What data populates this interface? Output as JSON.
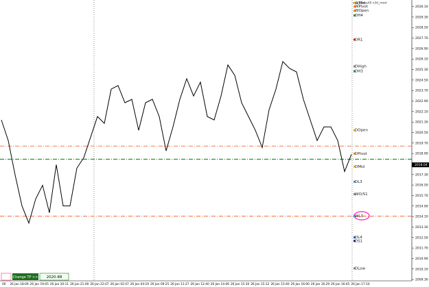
{
  "chart_data": {
    "type": "line",
    "title": "ma_CloseAll v3d_mod",
    "x_labels": [
      "00",
      "26 Jan 18:09",
      "26 Jan 19:05",
      "26 Jan 20:11",
      "26 Jan 21:00",
      "26 Jan 22:07",
      "26 Jan 02:47",
      "26 Jan 04:19",
      "26 Jan 09:25",
      "26 Jan 11:27",
      "26 Jan 12:40",
      "26 Jan 14:06",
      "26 Jan 15:30",
      "26 Jan 15:12",
      "26 Jan 15:40",
      "26 Jan 16:00",
      "26 Jan 16:29",
      "26 Jan 16:45",
      "26 Jan 17:10"
    ],
    "series": [
      {
        "color": "#000000",
        "values": [
          2021.46,
          2019.89,
          2017.27,
          2014.91,
          2013.6,
          2015.44,
          2016.48,
          2014.39,
          2018.05,
          2014.91,
          2014.91,
          2017.79,
          2018.58,
          2020.15,
          2021.72,
          2021.2,
          2023.81,
          2024.08,
          2022.77,
          2023.03,
          2020.67,
          2022.77,
          2023.03,
          2021.72,
          2019.1,
          2020.93,
          2023.03,
          2024.6,
          2023.29,
          2024.34,
          2021.72,
          2021.46,
          2023.29,
          2025.65,
          2024.86,
          2022.77,
          2021.72,
          2020.67,
          2019.36,
          2022.24,
          2023.81,
          2025.91,
          2025.38,
          2025.12,
          2023.03,
          2021.46,
          2019.89,
          2020.93,
          2020.93,
          2019.89,
          2017.53,
          2018.84
        ]
      }
    ],
    "ylim": [
      2009.2,
      2030.6
    ],
    "yticks": [
      {
        "value": 2030.1,
        "label": "2030.10"
      },
      {
        "value": 2029.3,
        "label": "2029.30"
      },
      {
        "value": 2028.5,
        "label": "2028.50"
      },
      {
        "value": 2027.7,
        "label": "2027.70"
      },
      {
        "value": 2026.9,
        "label": "2026.90"
      },
      {
        "value": 2026.1,
        "label": "2026.10"
      },
      {
        "value": 2025.3,
        "label": "2025.30"
      },
      {
        "value": 2024.5,
        "label": "2024.50"
      },
      {
        "value": 2023.7,
        "label": "2023.70"
      },
      {
        "value": 2022.9,
        "label": "2022.90"
      },
      {
        "value": 2022.1,
        "label": "2022.10"
      },
      {
        "value": 2021.3,
        "label": "2021.30"
      },
      {
        "value": 2020.5,
        "label": "2020.50"
      },
      {
        "value": 2019.7,
        "label": "2019.70"
      },
      {
        "value": 2018.9,
        "label": "2018.90"
      },
      {
        "value": 2018.1,
        "label": "2018.10"
      },
      {
        "value": 2017.3,
        "label": "2017.30"
      },
      {
        "value": 2016.5,
        "label": "2016.50"
      },
      {
        "value": 2015.7,
        "label": "2015.70"
      },
      {
        "value": 2014.9,
        "label": "2014.90"
      },
      {
        "value": 2014.1,
        "label": "2014.10"
      },
      {
        "value": 2013.3,
        "label": "2013.30"
      },
      {
        "value": 2012.5,
        "label": "2012.50"
      },
      {
        "value": 2011.7,
        "label": "2011.70"
      },
      {
        "value": 2010.9,
        "label": "2010.90"
      },
      {
        "value": 2010.1,
        "label": "2010.10"
      },
      {
        "value": 2009.3,
        "label": "2009.30"
      }
    ],
    "hlines": [
      {
        "value": 2019.47,
        "color": "#f07850"
      },
      {
        "value": 2018.47,
        "color": "#1a8a1a"
      },
      {
        "value": 2014.13,
        "color": "#f07850"
      }
    ],
    "current_price": 2018.04,
    "levels": [
      {
        "name": "WMid",
        "value": 2030.36,
        "color": "#e8c800"
      },
      {
        "name": "WPivot",
        "value": 2030.1,
        "color": "#ff8c00"
      },
      {
        "name": "WOpen",
        "value": 2029.78,
        "color": "#ff8c00"
      },
      {
        "name": "DH4",
        "value": 2029.42,
        "color": "#2e8b57"
      },
      {
        "name": "DR1",
        "value": 2027.58,
        "color": "#d02020"
      },
      {
        "name": "DHigh",
        "value": 2025.54,
        "color": "#888888"
      },
      {
        "name": "DH3",
        "value": 2025.17,
        "color": "#2e8b57"
      },
      {
        "name": "DOpen",
        "value": 2020.67,
        "color": "#ffa500"
      },
      {
        "name": "DPivot",
        "value": 2018.89,
        "color": "#ff8c00"
      },
      {
        "name": "DMid",
        "value": 2017.9,
        "color": "#e8c800"
      },
      {
        "name": "DL3",
        "value": 2016.75,
        "color": "#30a0e0"
      },
      {
        "name": "WO/S1",
        "value": 2015.8,
        "color": "#888888"
      },
      {
        "name": "WL3",
        "value": 2014.13,
        "color": "#30a0e0"
      },
      {
        "name": "DL4",
        "value": 2012.51,
        "color": "#1060d0"
      },
      {
        "name": "DS1",
        "value": 2012.24,
        "color": "#102080"
      },
      {
        "name": "DLow",
        "value": 2010.15,
        "color": "#888888"
      }
    ]
  },
  "controls": {
    "button": "Change TP >>",
    "input": "2020.88"
  }
}
